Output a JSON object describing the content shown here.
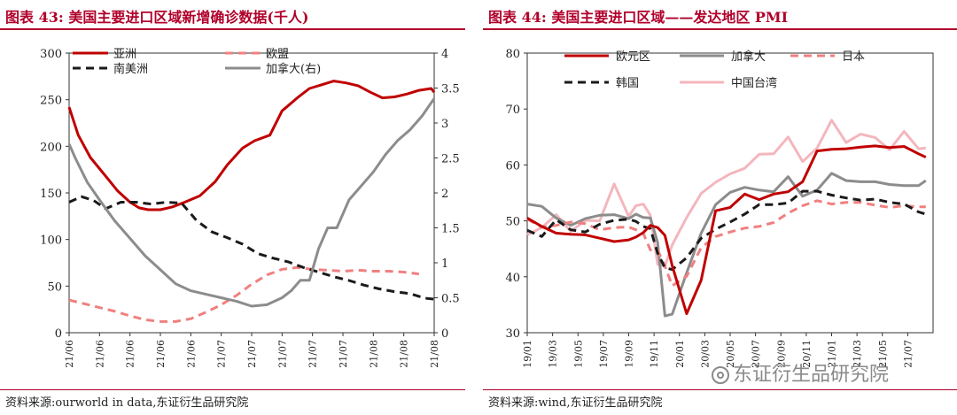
{
  "left": {
    "title_fig": "图表 43:",
    "title_text": "美国主要进口区域新增确诊数据(千人)",
    "source": "资料来源:ourworld in data,东证衍生品研究院"
  },
  "right": {
    "title_fig": "图表 44:",
    "title_text": "美国主要进口区域——发达地区 PMI",
    "source": "资料来源:wind,东证衍生品研究院"
  },
  "watermark": "东证衍生品研究院",
  "colors": {
    "title": "#b0002a",
    "series_red": "#c00000",
    "series_pink": "#f08080",
    "series_black": "#1a1a1a",
    "series_gray": "#8c8c8c",
    "series_lightpink": "#f4b6bd"
  },
  "chart_data": [
    {
      "type": "line",
      "title": "美国主要进口区域新增确诊数据(千人)",
      "x_ticks": [
        "21/06",
        "21/06",
        "21/06",
        "21/06",
        "21/06",
        "21/07",
        "21/07",
        "21/07",
        "21/07",
        "21/07",
        "21/08",
        "21/08",
        "21/08"
      ],
      "ylim_left": [
        0,
        300
      ],
      "yticks_left": [
        "0",
        "50",
        "100",
        "150",
        "200",
        "250",
        "300"
      ],
      "ylim_right": [
        0,
        4
      ],
      "yticks_right": [
        "0",
        "0.5",
        "1",
        "1.5",
        "2",
        "2.5",
        "3",
        "3.5",
        "4"
      ],
      "legend_position": "top",
      "series": [
        {
          "name": "亚洲",
          "axis": "left",
          "style": "solid",
          "color": "#c00000",
          "x": [
            0,
            0.3,
            0.7,
            1.2,
            1.6,
            2.0,
            2.3,
            2.6,
            3.0,
            3.4,
            3.8,
            4.3,
            4.8,
            5.2,
            5.7,
            6.1,
            6.6,
            7.0,
            7.5,
            7.9,
            8.3,
            8.7,
            9.1,
            9.5,
            9.9,
            10.3,
            10.7,
            11.1,
            11.5,
            11.9,
            12.0
          ],
          "y": [
            242,
            212,
            188,
            168,
            152,
            140,
            134,
            132,
            132,
            135,
            140,
            147,
            162,
            180,
            198,
            206,
            212,
            238,
            252,
            262,
            266,
            270,
            268,
            265,
            258,
            252,
            253,
            256,
            260,
            262,
            258
          ]
        },
        {
          "name": "欧盟",
          "axis": "left",
          "style": "dash",
          "color": "#f08080",
          "x": [
            0,
            0.5,
            1.0,
            1.5,
            2.0,
            2.5,
            3.0,
            3.5,
            4.0,
            4.5,
            5.0,
            5.5,
            6.0,
            6.5,
            7.0,
            7.5,
            8.0,
            8.5,
            9.0,
            9.5,
            10.0,
            10.5,
            11.0,
            11.5
          ],
          "y": [
            35,
            31,
            27,
            23,
            18,
            14,
            12,
            12,
            15,
            22,
            30,
            40,
            52,
            62,
            68,
            70,
            68,
            67,
            66,
            67,
            66,
            66,
            65,
            63
          ]
        },
        {
          "name": "南美洲",
          "axis": "left",
          "style": "dash",
          "color": "#1a1a1a",
          "x": [
            0,
            0.4,
            0.8,
            1.2,
            1.7,
            2.2,
            2.7,
            3.2,
            3.7,
            4.2,
            4.7,
            5.2,
            5.7,
            6.2,
            6.7,
            7.2,
            7.7,
            8.2,
            8.7,
            9.2,
            9.7,
            10.2,
            10.7,
            11.2,
            11.7,
            12.0
          ],
          "y": [
            140,
            146,
            142,
            133,
            140,
            140,
            138,
            140,
            139,
            120,
            108,
            102,
            95,
            85,
            80,
            76,
            70,
            65,
            60,
            56,
            51,
            47,
            44,
            42,
            37,
            36
          ]
        },
        {
          "name": "加拿大(右)",
          "axis": "right",
          "style": "solid",
          "color": "#8c8c8c",
          "x": [
            0,
            0.2,
            0.6,
            1.0,
            1.5,
            2.0,
            2.5,
            3.0,
            3.5,
            4.0,
            4.5,
            5.0,
            5.5,
            6.0,
            6.5,
            7.0,
            7.3,
            7.6,
            7.9,
            8.2,
            8.5,
            8.8,
            9.2,
            9.6,
            10.0,
            10.4,
            10.8,
            11.2,
            11.6,
            12.0
          ],
          "y": [
            2.7,
            2.5,
            2.15,
            1.9,
            1.6,
            1.35,
            1.1,
            0.9,
            0.7,
            0.6,
            0.55,
            0.5,
            0.45,
            0.38,
            0.4,
            0.5,
            0.6,
            0.75,
            0.75,
            1.2,
            1.5,
            1.5,
            1.9,
            2.1,
            2.3,
            2.55,
            2.75,
            2.9,
            3.1,
            3.35
          ]
        }
      ]
    },
    {
      "type": "line",
      "title": "美国主要进口区域——发达地区 PMI",
      "x_ticks": [
        "19/01",
        "19/03",
        "19/05",
        "19/07",
        "19/09",
        "19/11",
        "20/01",
        "20/03",
        "20/05",
        "20/07",
        "20/09",
        "20/11",
        "21/01",
        "21/03",
        "21/05",
        "21/07"
      ],
      "ylim": [
        30,
        80
      ],
      "yticks": [
        "30",
        "40",
        "50",
        "60",
        "70",
        "80"
      ],
      "legend_position": "top",
      "series": [
        {
          "name": "欧元区",
          "style": "solid",
          "color": "#c00000",
          "x": [
            0,
            2,
            4,
            6,
            8,
            10,
            12,
            14,
            15,
            16,
            17,
            18,
            19,
            20,
            22,
            24,
            26,
            28,
            30,
            32,
            34,
            36,
            38,
            40,
            42,
            44,
            46,
            48,
            50,
            52,
            54,
            55
          ],
          "y": [
            50.5,
            49,
            47.8,
            47.6,
            47.5,
            46.9,
            46.3,
            46.6,
            47.1,
            47.9,
            49.2,
            48.8,
            47.4,
            42,
            33.4,
            39.4,
            51.8,
            52.4,
            54.8,
            53.8,
            54.8,
            55.2,
            57,
            62.5,
            62.8,
            62.9,
            63.2,
            63.4,
            63.1,
            63.3,
            62,
            61.4
          ]
        },
        {
          "name": "加拿大",
          "style": "solid",
          "color": "#8c8c8c",
          "x": [
            0,
            2,
            4,
            6,
            8,
            10,
            12,
            14,
            15,
            16,
            17,
            18,
            19,
            20,
            22,
            24,
            26,
            28,
            30,
            32,
            34,
            36,
            38,
            40,
            42,
            44,
            46,
            48,
            50,
            52,
            54,
            55
          ],
          "y": [
            53,
            52.6,
            50.5,
            49.2,
            50.4,
            51,
            51.1,
            50.4,
            51.2,
            50.6,
            50.5,
            46.1,
            33,
            33.3,
            40.7,
            47.8,
            52.9,
            55.1,
            56,
            55.5,
            55.2,
            57.9,
            54.4,
            55.5,
            58.5,
            57.2,
            57,
            57,
            56.5,
            56.3,
            56.3,
            57.2
          ]
        },
        {
          "name": "日本",
          "style": "dash",
          "color": "#f08080",
          "x": [
            0,
            2,
            4,
            6,
            8,
            10,
            12,
            14,
            15,
            16,
            17,
            18,
            19,
            20,
            22,
            24,
            26,
            28,
            30,
            32,
            34,
            36,
            38,
            40,
            42,
            44,
            46,
            48,
            50,
            52,
            54,
            55
          ],
          "y": [
            50.3,
            48.9,
            49.2,
            49.8,
            49.5,
            48.4,
            48.8,
            48.9,
            48.4,
            47.8,
            44.8,
            44.8,
            41.9,
            38.4,
            40.1,
            45.2,
            47.2,
            48,
            48.7,
            49,
            49.7,
            51.4,
            52.7,
            53.6,
            53,
            53.3,
            53.3,
            52.8,
            52.4,
            52.7,
            52.5,
            52.5
          ]
        },
        {
          "name": "韩国",
          "style": "dash",
          "color": "#1a1a1a",
          "x": [
            0,
            2,
            4,
            6,
            8,
            10,
            12,
            14,
            15,
            16,
            17,
            18,
            19,
            20,
            22,
            24,
            26,
            28,
            30,
            32,
            34,
            36,
            38,
            40,
            42,
            44,
            46,
            48,
            50,
            52,
            54,
            55
          ],
          "y": [
            48.3,
            47.2,
            50.2,
            48.4,
            48.0,
            49.4,
            50.1,
            50.3,
            49.9,
            49.0,
            48.6,
            44.2,
            41.6,
            41.3,
            43.4,
            46.9,
            48.5,
            49.8,
            51.2,
            52.9,
            52.9,
            53.2,
            55.3,
            55.3,
            54.6,
            54.1,
            53.7,
            53.9,
            53.3,
            53,
            51.6,
            51.2
          ]
        },
        {
          "name": "中国台湾",
          "style": "solid",
          "color": "#f4b6bd",
          "x": [
            0,
            2,
            4,
            6,
            8,
            10,
            12,
            14,
            15,
            16,
            17,
            18,
            19,
            20,
            22,
            24,
            26,
            28,
            30,
            32,
            34,
            36,
            38,
            40,
            42,
            44,
            46,
            48,
            50,
            52,
            54,
            55
          ],
          "y": [
            47.5,
            48.8,
            51.1,
            48.1,
            50.1,
            50,
            56.6,
            50.8,
            52.7,
            53,
            51,
            42.2,
            41.9,
            45.7,
            50.6,
            54.9,
            56.9,
            58.4,
            59.4,
            61.9,
            62,
            65,
            60.6,
            63,
            68,
            64,
            65.5,
            64.9,
            62.7,
            66,
            62.9,
            63
          ]
        }
      ]
    }
  ]
}
